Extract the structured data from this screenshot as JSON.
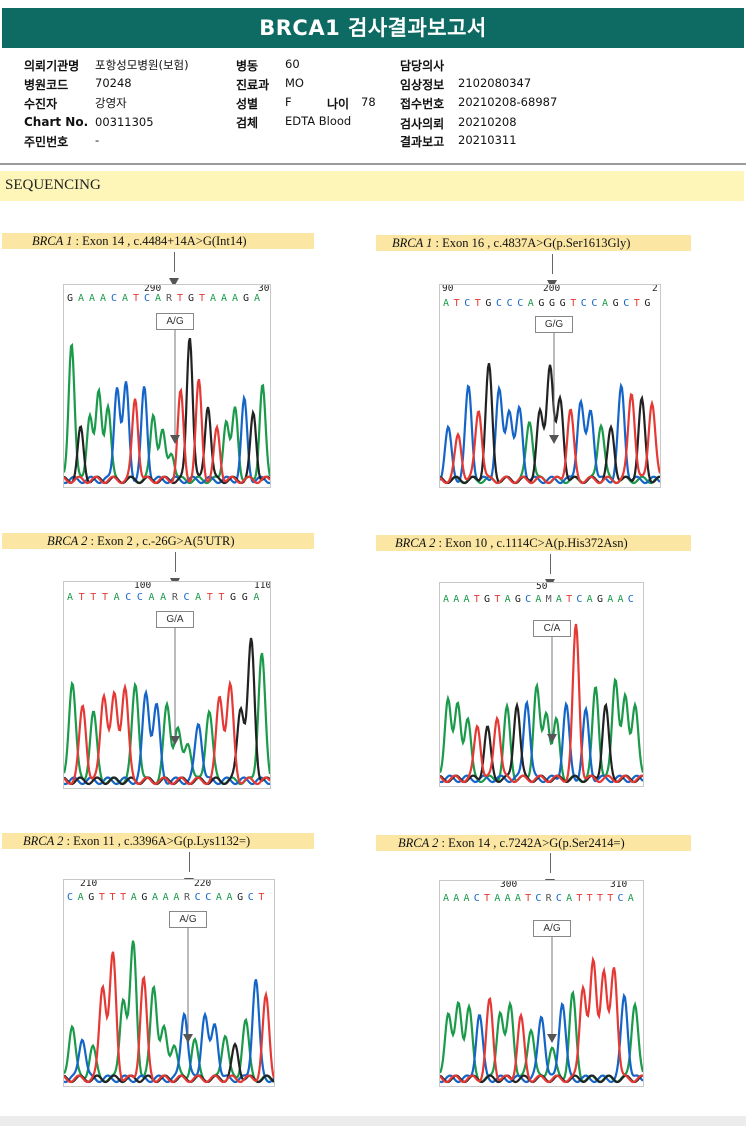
{
  "report": {
    "title": "BRCA1 검사결과보고서"
  },
  "info": {
    "col1": [
      {
        "label": "의뢰기관명",
        "value": "포항성모병원(보험)"
      },
      {
        "label": "병원코드",
        "value": "70248"
      },
      {
        "label": "수진자",
        "value": "강영자"
      },
      {
        "label": "Chart No.",
        "value": "00311305"
      },
      {
        "label": "주민번호",
        "value": "-"
      }
    ],
    "col2": [
      {
        "label": "병동",
        "value": "60"
      },
      {
        "label": "진료과",
        "value": "MO"
      },
      {
        "label": "성별",
        "value": "F"
      },
      {
        "label": "검체",
        "value": "EDTA Blood"
      }
    ],
    "age": {
      "label": "나이",
      "value": "78"
    },
    "col3": [
      {
        "label": "담당의사",
        "value": ""
      },
      {
        "label": "임상정보",
        "value": "2102080347"
      },
      {
        "label": "접수번호",
        "value": "20210208-68987"
      },
      {
        "label": "검사의뢰",
        "value": "20210208"
      },
      {
        "label": "결과보고",
        "value": "20210311"
      }
    ]
  },
  "section": {
    "title": "SEQUENCING"
  },
  "colors": {
    "A": "#1a9a4a",
    "C": "#1565c8",
    "G": "#222222",
    "T": "#e53935",
    "title_bg": "#0e6b64"
  },
  "variants": [
    {
      "gene": "BRCA 1",
      "desc": " : Exon 14 , c.4484+14A>G(Int14)",
      "call": "A/G",
      "sequence": "G A A A C A T C A R T G T A A A G A",
      "pos_left": "290",
      "pos_right": "30",
      "peaks": [
        {
          "b": "A",
          "h": 0.88
        },
        {
          "b": "G",
          "h": 0.32
        },
        {
          "b": "A",
          "h": 0.42
        },
        {
          "b": "A",
          "h": 0.55
        },
        {
          "b": "A",
          "h": 0.47
        },
        {
          "b": "C",
          "h": 0.6
        },
        {
          "b": "C",
          "h": 0.6
        },
        {
          "b": "T",
          "h": 0.52
        },
        {
          "b": "C",
          "h": 0.58
        },
        {
          "b": "A",
          "h": 0.42
        },
        {
          "b": "A",
          "h": 0.3
        },
        {
          "b": "A",
          "h": 0.18
        },
        {
          "b": "T",
          "h": 0.55
        },
        {
          "b": "G",
          "h": 0.92
        },
        {
          "b": "T",
          "h": 0.62
        },
        {
          "b": "G",
          "h": 0.48
        },
        {
          "b": "T",
          "h": 0.32
        },
        {
          "b": "A",
          "h": 0.38
        },
        {
          "b": "A",
          "h": 0.45
        },
        {
          "b": "C",
          "h": 0.5
        },
        {
          "b": "G",
          "h": 0.42
        },
        {
          "b": "A",
          "h": 0.6
        }
      ]
    },
    {
      "gene": "BRCA 1",
      "desc": " : Exon 16 , c.4837A>G(p.Ser1613Gly)",
      "call": "G/G",
      "sequence": "A T C T G C C C A G G G T C C A G C T G",
      "pos_left": "90",
      "pos_mid": "200",
      "pos_right": "2",
      "peaks": [
        {
          "b": "C",
          "h": 0.32
        },
        {
          "b": "T",
          "h": 0.28
        },
        {
          "b": "C",
          "h": 0.58
        },
        {
          "b": "T",
          "h": 0.45
        },
        {
          "b": "G",
          "h": 0.72
        },
        {
          "b": "C",
          "h": 0.56
        },
        {
          "b": "C",
          "h": 0.45
        },
        {
          "b": "C",
          "h": 0.44
        },
        {
          "b": "A",
          "h": 0.38
        },
        {
          "b": "G",
          "h": 0.42
        },
        {
          "b": "G",
          "h": 0.74
        },
        {
          "b": "G",
          "h": 0.5
        },
        {
          "b": "T",
          "h": 0.44
        },
        {
          "b": "C",
          "h": 0.5
        },
        {
          "b": "C",
          "h": 0.44
        },
        {
          "b": "A",
          "h": 0.36
        },
        {
          "b": "G",
          "h": 0.32
        },
        {
          "b": "C",
          "h": 0.58
        },
        {
          "b": "T",
          "h": 0.56
        },
        {
          "b": "G",
          "h": 0.5
        },
        {
          "b": "T",
          "h": 0.5
        }
      ]
    },
    {
      "gene": "BRCA 2",
      "desc": " : Exon 2 , c.-26G>A(5'UTR)",
      "call": "G/A",
      "sequence": "A T T T A C C A A R C A T T G G A",
      "pos_left": "100",
      "pos_right": "110",
      "peaks": [
        {
          "b": "A",
          "h": 0.62
        },
        {
          "b": "T",
          "h": 0.46
        },
        {
          "b": "A",
          "h": 0.42
        },
        {
          "b": "T",
          "h": 0.54
        },
        {
          "b": "T",
          "h": 0.52
        },
        {
          "b": "T",
          "h": 0.58
        },
        {
          "b": "A",
          "h": 0.6
        },
        {
          "b": "C",
          "h": 0.54
        },
        {
          "b": "C",
          "h": 0.46
        },
        {
          "b": "A",
          "h": 0.46
        },
        {
          "b": "A",
          "h": 0.32
        },
        {
          "b": "A",
          "h": 0.24
        },
        {
          "b": "C",
          "h": 0.36
        },
        {
          "b": "A",
          "h": 0.44
        },
        {
          "b": "T",
          "h": 0.52
        },
        {
          "b": "T",
          "h": 0.58
        },
        {
          "b": "G",
          "h": 0.46
        },
        {
          "b": "G",
          "h": 0.86
        },
        {
          "b": "A",
          "h": 0.79
        }
      ]
    },
    {
      "gene": "BRCA 2",
      "desc": " : Exon 10 , c.1114C>A(p.His372Asn)",
      "call": "C/A",
      "sequence": "A A A T G T A G C A M A T C A G A A C",
      "pos_left": "50",
      "peaks": [
        {
          "b": "A",
          "h": 0.52
        },
        {
          "b": "A",
          "h": 0.46
        },
        {
          "b": "A",
          "h": 0.38
        },
        {
          "b": "T",
          "h": 0.34
        },
        {
          "b": "G",
          "h": 0.32
        },
        {
          "b": "T",
          "h": 0.4
        },
        {
          "b": "A",
          "h": 0.44
        },
        {
          "b": "G",
          "h": 0.48
        },
        {
          "b": "C",
          "h": 0.5
        },
        {
          "b": "A",
          "h": 0.58
        },
        {
          "b": "A",
          "h": 0.42
        },
        {
          "b": "A",
          "h": 0.36
        },
        {
          "b": "C",
          "h": 0.46
        },
        {
          "b": "T",
          "h": 0.96
        },
        {
          "b": "C",
          "h": 0.42
        },
        {
          "b": "A",
          "h": 0.58
        },
        {
          "b": "G",
          "h": 0.46
        },
        {
          "b": "A",
          "h": 0.64
        },
        {
          "b": "A",
          "h": 0.5
        },
        {
          "b": "A",
          "h": 0.48
        }
      ]
    },
    {
      "gene": "BRCA 2",
      "desc": " : Exon 11 , c.3396A>G(p.Lys1132=)",
      "call": "A/G",
      "sequence": "C A G T T T A G A A A R C C A A G C T",
      "pos_left": "210",
      "pos_right": "220",
      "peaks": [
        {
          "b": "A",
          "h": 0.34
        },
        {
          "b": "C",
          "h": 0.26
        },
        {
          "b": "A",
          "h": 0.2
        },
        {
          "b": "T",
          "h": 0.58
        },
        {
          "b": "T",
          "h": 0.76
        },
        {
          "b": "A",
          "h": 0.5
        },
        {
          "b": "A",
          "h": 0.84
        },
        {
          "b": "T",
          "h": 0.62
        },
        {
          "b": "A",
          "h": 0.58
        },
        {
          "b": "A",
          "h": 0.3
        },
        {
          "b": "A",
          "h": 0.22
        },
        {
          "b": "C",
          "h": 0.42
        },
        {
          "b": "A",
          "h": 0.24
        },
        {
          "b": "C",
          "h": 0.4
        },
        {
          "b": "C",
          "h": 0.34
        },
        {
          "b": "A",
          "h": 0.28
        },
        {
          "b": "G",
          "h": 0.2
        },
        {
          "b": "A",
          "h": 0.36
        },
        {
          "b": "C",
          "h": 0.62
        },
        {
          "b": "T",
          "h": 0.5
        }
      ]
    },
    {
      "gene": "BRCA 2",
      "desc": " : Exon 14 , c.7242A>G(p.Ser2414=)",
      "call": "A/G",
      "sequence": "A A A C T A A A T C R C A T T T T C A",
      "pos_left": "300",
      "pos_right": "310",
      "peaks": [
        {
          "b": "A",
          "h": 0.42
        },
        {
          "b": "A",
          "h": 0.46
        },
        {
          "b": "A",
          "h": 0.44
        },
        {
          "b": "C",
          "h": 0.4
        },
        {
          "b": "T",
          "h": 0.48
        },
        {
          "b": "A",
          "h": 0.42
        },
        {
          "b": "A",
          "h": 0.46
        },
        {
          "b": "T",
          "h": 0.38
        },
        {
          "b": "A",
          "h": 0.32
        },
        {
          "b": "C",
          "h": 0.4
        },
        {
          "b": "A",
          "h": 0.2
        },
        {
          "b": "C",
          "h": 0.48
        },
        {
          "b": "A",
          "h": 0.52
        },
        {
          "b": "T",
          "h": 0.58
        },
        {
          "b": "T",
          "h": 0.72
        },
        {
          "b": "T",
          "h": 0.66
        },
        {
          "b": "T",
          "h": 0.7
        },
        {
          "b": "C",
          "h": 0.52
        },
        {
          "b": "A",
          "h": 0.48
        }
      ]
    }
  ]
}
